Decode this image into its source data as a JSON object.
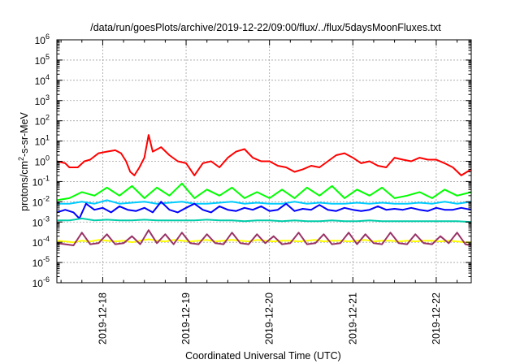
{
  "chart_data": {
    "type": "line",
    "title": "/data/run/goesPlots/archive/2019-12-22/09:00/flux/../flux/5daysMoonFluxes.txt",
    "xlabel": "Coordinated Universal Time (UTC)",
    "ylabel": {
      "base": "protons/cm",
      "sup": "2",
      "rest": "-s-sr-MeV"
    },
    "y_scale": "log",
    "ylim_exponent": [
      -6,
      6
    ],
    "y_tick_labels": [
      {
        "value": -6,
        "base": "10",
        "exp": "-6"
      },
      {
        "value": -5,
        "base": "10",
        "exp": "-5"
      },
      {
        "value": -4,
        "base": "10",
        "exp": "-4"
      },
      {
        "value": -3,
        "base": "10",
        "exp": "-3"
      },
      {
        "value": -2,
        "base": "10",
        "exp": "-2"
      },
      {
        "value": -1,
        "base": "10",
        "exp": "-1"
      },
      {
        "value": 0,
        "base": "10",
        "exp": "0"
      },
      {
        "value": 1,
        "base": "10",
        "exp": "1"
      },
      {
        "value": 2,
        "base": "10",
        "exp": "2"
      },
      {
        "value": 3,
        "base": "10",
        "exp": "3"
      },
      {
        "value": 4,
        "base": "10",
        "exp": "4"
      },
      {
        "value": 5,
        "base": "10",
        "exp": "5"
      },
      {
        "value": 6,
        "base": "10",
        "exp": "6"
      }
    ],
    "x_range_days": [
      -0.55,
      4.42
    ],
    "x_tick_labels": [
      {
        "value": 0,
        "label": "2019-12-18"
      },
      {
        "value": 1,
        "label": "2019-12-19"
      },
      {
        "value": 2,
        "label": "2019-12-20"
      },
      {
        "value": 3,
        "label": "2019-12-21"
      },
      {
        "value": 4,
        "label": "2019-12-22"
      }
    ],
    "grid": true,
    "series": [
      {
        "color": "#ff0000",
        "x": [
          -0.55,
          -0.45,
          -0.4,
          -0.3,
          -0.22,
          -0.15,
          -0.05,
          0.05,
          0.15,
          0.22,
          0.28,
          0.33,
          0.38,
          0.44,
          0.5,
          0.55,
          0.6,
          0.7,
          0.8,
          0.9,
          1.0,
          1.05,
          1.1,
          1.2,
          1.3,
          1.4,
          1.5,
          1.6,
          1.7,
          1.8,
          1.9,
          2.0,
          2.1,
          2.2,
          2.3,
          2.4,
          2.5,
          2.6,
          2.7,
          2.8,
          2.9,
          3.0,
          3.1,
          3.2,
          3.3,
          3.4,
          3.5,
          3.6,
          3.7,
          3.8,
          3.9,
          4.0,
          4.1,
          4.2,
          4.3,
          4.42
        ],
        "y": [
          1.0,
          0.8,
          0.5,
          0.5,
          1.0,
          1.2,
          2.5,
          3.0,
          3.5,
          2.5,
          1.0,
          0.3,
          0.2,
          0.5,
          1.5,
          20,
          3.0,
          5.0,
          2.0,
          1.0,
          0.8,
          0.4,
          0.2,
          0.8,
          1.0,
          0.5,
          1.5,
          3.0,
          4.0,
          1.5,
          1.0,
          1.0,
          0.6,
          0.5,
          0.3,
          0.4,
          0.6,
          0.5,
          1.0,
          2.0,
          2.5,
          1.5,
          0.8,
          1.0,
          0.6,
          0.5,
          1.5,
          1.2,
          1.0,
          1.5,
          1.2,
          1.2,
          0.8,
          0.5,
          0.2,
          0.4
        ]
      },
      {
        "color": "#00ff00",
        "x": [
          -0.55,
          -0.4,
          -0.25,
          -0.1,
          0.05,
          0.2,
          0.35,
          0.5,
          0.65,
          0.8,
          0.95,
          1.1,
          1.25,
          1.4,
          1.55,
          1.7,
          1.85,
          2.0,
          2.15,
          2.3,
          2.45,
          2.6,
          2.75,
          2.9,
          3.05,
          3.2,
          3.35,
          3.5,
          3.65,
          3.8,
          3.95,
          4.1,
          4.25,
          4.42
        ],
        "y": [
          0.012,
          0.015,
          0.03,
          0.02,
          0.05,
          0.02,
          0.06,
          0.015,
          0.05,
          0.02,
          0.08,
          0.015,
          0.04,
          0.02,
          0.05,
          0.015,
          0.03,
          0.015,
          0.04,
          0.015,
          0.05,
          0.02,
          0.06,
          0.015,
          0.04,
          0.02,
          0.05,
          0.015,
          0.02,
          0.03,
          0.015,
          0.04,
          0.02,
          0.03
        ]
      },
      {
        "color": "#00ccff",
        "x": [
          -0.55,
          -0.4,
          -0.25,
          -0.1,
          0.05,
          0.2,
          0.35,
          0.5,
          0.65,
          0.8,
          0.95,
          1.1,
          1.25,
          1.4,
          1.55,
          1.7,
          1.85,
          2.0,
          2.15,
          2.3,
          2.45,
          2.6,
          2.75,
          2.9,
          3.05,
          3.2,
          3.35,
          3.5,
          3.65,
          3.8,
          3.95,
          4.1,
          4.25,
          4.42
        ],
        "y": [
          0.008,
          0.008,
          0.01,
          0.008,
          0.012,
          0.008,
          0.009,
          0.01,
          0.008,
          0.009,
          0.01,
          0.008,
          0.008,
          0.009,
          0.01,
          0.008,
          0.009,
          0.008,
          0.008,
          0.01,
          0.008,
          0.009,
          0.008,
          0.008,
          0.009,
          0.008,
          0.009,
          0.008,
          0.008,
          0.009,
          0.008,
          0.01,
          0.008,
          0.01
        ]
      },
      {
        "color": "#0000ff",
        "x": [
          -0.55,
          -0.45,
          -0.35,
          -0.28,
          -0.2,
          -0.1,
          0.0,
          0.1,
          0.2,
          0.3,
          0.4,
          0.5,
          0.6,
          0.7,
          0.8,
          0.9,
          1.0,
          1.1,
          1.2,
          1.3,
          1.4,
          1.5,
          1.6,
          1.7,
          1.8,
          1.9,
          2.0,
          2.1,
          2.2,
          2.3,
          2.4,
          2.5,
          2.6,
          2.7,
          2.8,
          2.9,
          3.0,
          3.1,
          3.2,
          3.3,
          3.4,
          3.5,
          3.6,
          3.7,
          3.8,
          3.9,
          4.0,
          4.1,
          4.2,
          4.3,
          4.42
        ],
        "y": [
          0.003,
          0.004,
          0.003,
          0.0015,
          0.008,
          0.004,
          0.005,
          0.003,
          0.006,
          0.004,
          0.0035,
          0.005,
          0.003,
          0.01,
          0.004,
          0.003,
          0.005,
          0.008,
          0.004,
          0.003,
          0.006,
          0.004,
          0.0035,
          0.005,
          0.004,
          0.006,
          0.0035,
          0.004,
          0.008,
          0.0035,
          0.0045,
          0.004,
          0.007,
          0.004,
          0.0035,
          0.005,
          0.004,
          0.0035,
          0.004,
          0.006,
          0.004,
          0.0045,
          0.004,
          0.005,
          0.004,
          0.0035,
          0.005,
          0.004,
          0.004,
          0.005,
          0.004
        ]
      },
      {
        "color": "#00ccaa",
        "x": [
          -0.55,
          -0.4,
          -0.25,
          -0.1,
          0.05,
          0.2,
          0.35,
          0.5,
          0.65,
          0.8,
          0.95,
          1.1,
          1.25,
          1.4,
          1.55,
          1.7,
          1.85,
          2.0,
          2.15,
          2.3,
          2.45,
          2.6,
          2.75,
          2.9,
          3.05,
          3.2,
          3.35,
          3.5,
          3.65,
          3.8,
          3.95,
          4.1,
          4.25,
          4.42
        ],
        "y": [
          0.0012,
          0.0012,
          0.0015,
          0.0012,
          0.0013,
          0.0012,
          0.0012,
          0.0013,
          0.0012,
          0.0012,
          0.0012,
          0.0012,
          0.0013,
          0.0012,
          0.0012,
          0.0011,
          0.0012,
          0.0012,
          0.0011,
          0.0012,
          0.0011,
          0.0011,
          0.0012,
          0.0011,
          0.0011,
          0.0012,
          0.0011,
          0.0011,
          0.0011,
          0.0011,
          0.0011,
          0.0011,
          0.0011,
          0.001
        ]
      },
      {
        "color": "#ffff00",
        "x": [
          -0.55,
          -0.45,
          -0.35,
          -0.25,
          -0.15,
          -0.05,
          0.05,
          0.15,
          0.25,
          0.35,
          0.45,
          0.55,
          0.65,
          0.75,
          0.85,
          0.95,
          1.05,
          1.15,
          1.25,
          1.35,
          1.45,
          1.55,
          1.65,
          1.75,
          1.85,
          1.95,
          2.05,
          2.15,
          2.25,
          2.35,
          2.45,
          2.55,
          2.65,
          2.75,
          2.85,
          2.95,
          3.05,
          3.15,
          3.25,
          3.35,
          3.45,
          3.55,
          3.65,
          3.75,
          3.85,
          3.95,
          4.05,
          4.15,
          4.25,
          4.35,
          4.42
        ],
        "y": [
          0.00012,
          0.00011,
          0.0001,
          0.00012,
          0.00011,
          0.00013,
          0.00012,
          0.00011,
          0.00012,
          0.0001,
          0.00012,
          0.00014,
          0.00012,
          0.00011,
          0.00013,
          0.00012,
          0.00011,
          0.00012,
          0.00013,
          0.00011,
          0.00012,
          0.00013,
          0.00012,
          0.00011,
          0.00013,
          0.00012,
          0.00011,
          0.00012,
          0.00012,
          0.00011,
          0.00012,
          0.00013,
          0.00011,
          0.00012,
          0.00012,
          0.00011,
          0.00012,
          0.00013,
          0.00011,
          0.00012,
          0.00012,
          0.00011,
          0.00012,
          0.00011,
          0.00012,
          0.00012,
          0.00011,
          0.00012,
          0.00011,
          0.0001,
          0.0001
        ]
      },
      {
        "color": "#993366",
        "x": [
          -0.55,
          -0.45,
          -0.35,
          -0.25,
          -0.15,
          -0.05,
          0.05,
          0.15,
          0.25,
          0.35,
          0.45,
          0.55,
          0.65,
          0.75,
          0.85,
          0.95,
          1.05,
          1.15,
          1.25,
          1.35,
          1.45,
          1.55,
          1.65,
          1.75,
          1.85,
          1.95,
          2.05,
          2.15,
          2.25,
          2.35,
          2.45,
          2.55,
          2.65,
          2.75,
          2.85,
          2.95,
          3.05,
          3.15,
          3.25,
          3.35,
          3.45,
          3.55,
          3.65,
          3.75,
          3.85,
          3.95,
          4.05,
          4.15,
          4.25,
          4.35,
          4.42
        ],
        "y": [
          9e-05,
          8e-05,
          7e-05,
          0.0003,
          8e-05,
          9e-05,
          0.00025,
          8e-05,
          9e-05,
          0.0002,
          8e-05,
          0.0004,
          9e-05,
          0.00025,
          8e-05,
          0.0003,
          9e-05,
          8e-05,
          0.00025,
          9e-05,
          8e-05,
          0.0003,
          9e-05,
          8e-05,
          0.00025,
          9e-05,
          0.0002,
          8e-05,
          9e-05,
          0.0003,
          8e-05,
          9e-05,
          0.00025,
          8e-05,
          9e-05,
          0.0003,
          8e-05,
          0.00025,
          9e-05,
          8e-05,
          0.0003,
          9e-05,
          8e-05,
          0.00025,
          9e-05,
          8e-05,
          0.0002,
          9e-05,
          0.0003,
          8e-05,
          7e-05
        ]
      }
    ]
  }
}
